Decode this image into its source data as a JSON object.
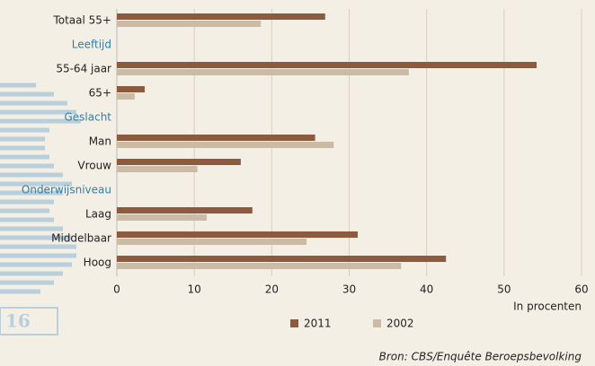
{
  "chart_data": {
    "type": "bar",
    "orientation": "horizontal",
    "categories": [
      "Totaal 55+",
      "Leeftijd",
      "55-64 jaar",
      "65+",
      "Geslacht",
      "Man",
      "Vrouw",
      "Onderwijsniveau",
      "Laag",
      "Middelbaar",
      "Hoog"
    ],
    "series": [
      {
        "name": "2011",
        "color": "#8c5b3d",
        "values": [
          26.9,
          null,
          54.2,
          3.6,
          null,
          25.6,
          16.0,
          null,
          17.5,
          31.1,
          42.5
        ]
      },
      {
        "name": "2002",
        "color": "#cbbba5",
        "values": [
          18.6,
          null,
          37.7,
          2.3,
          null,
          28.0,
          10.4,
          null,
          11.6,
          24.5,
          36.7
        ]
      }
    ],
    "xlim": [
      0,
      60
    ],
    "xticks": [
      0,
      10,
      20,
      30,
      40,
      50,
      60
    ],
    "grid": true,
    "xlabel": "In procenten",
    "heading_color": "#2f7fa6",
    "legend": "bottom",
    "source": "Bron: CBS/Enquête Beroepsbevolking"
  },
  "page_number": "16"
}
